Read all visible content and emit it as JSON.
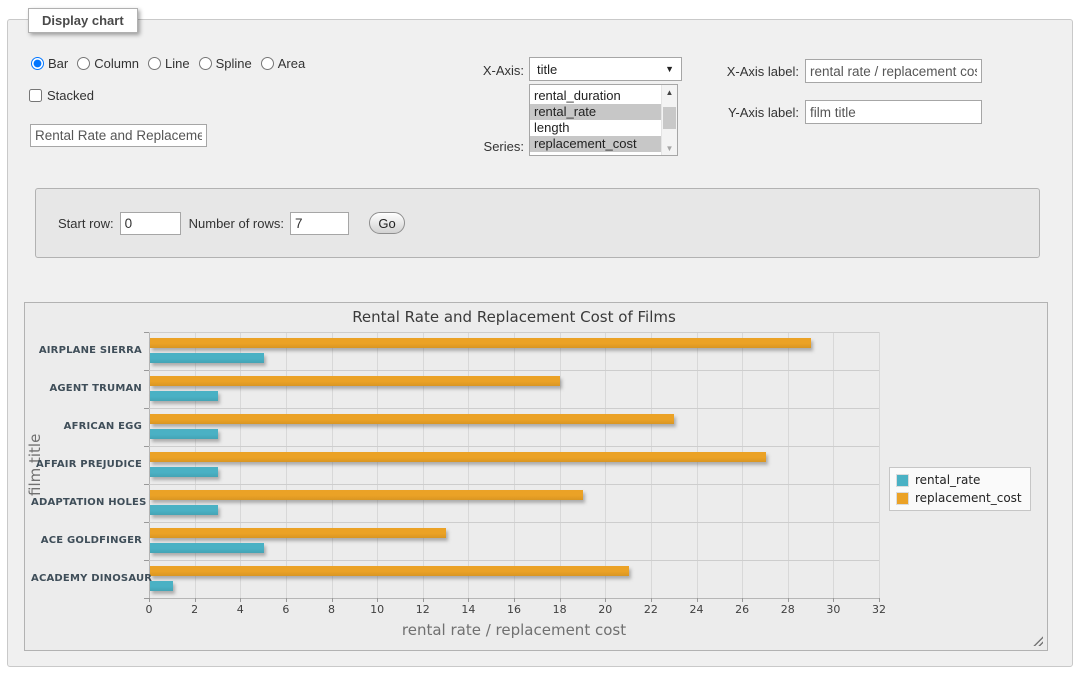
{
  "header": {
    "tab_label": "Display chart"
  },
  "controls": {
    "chart_types": [
      {
        "label": "Bar",
        "selected": true
      },
      {
        "label": "Column",
        "selected": false
      },
      {
        "label": "Line",
        "selected": false
      },
      {
        "label": "Spline",
        "selected": false
      },
      {
        "label": "Area",
        "selected": false
      }
    ],
    "stacked": {
      "label": "Stacked",
      "checked": false
    },
    "chart_title_input": {
      "value": "Rental Rate and Replacement Cost of Films"
    },
    "x_axis": {
      "label": "X-Axis:",
      "selected_value": "title"
    },
    "series_picker": {
      "label": "Series:",
      "options": [
        {
          "label": "rental_duration",
          "selected": false
        },
        {
          "label": "rental_rate",
          "selected": true
        },
        {
          "label": "length",
          "selected": false
        },
        {
          "label": "replacement_cost",
          "selected": true
        }
      ]
    },
    "x_axis_label": {
      "label": "X-Axis label:",
      "value": "rental rate / replacement cost"
    },
    "y_axis_label": {
      "label": "Y-Axis label:",
      "value": "film title"
    }
  },
  "row_controls": {
    "start_row_label": "Start row:",
    "start_row_value": "0",
    "num_rows_label": "Number of rows:",
    "num_rows_value": "7",
    "go_label": "Go"
  },
  "chart_data": {
    "type": "bar",
    "title": "Rental Rate and Replacement Cost of Films",
    "xlabel": "rental rate / replacement cost",
    "ylabel": "film title",
    "categories": [
      "AIRPLANE SIERRA",
      "AGENT TRUMAN",
      "AFRICAN EGG",
      "AFFAIR PREJUDICE",
      "ADAPTATION HOLES",
      "ACE GOLDFINGER",
      "ACADEMY DINOSAUR"
    ],
    "series": [
      {
        "name": "rental_rate",
        "color": "#4ab1c4",
        "values": [
          4.99,
          2.99,
          2.99,
          2.99,
          2.99,
          4.99,
          0.99
        ]
      },
      {
        "name": "replacement_cost",
        "color": "#eba226",
        "values": [
          28.99,
          17.99,
          22.99,
          26.99,
          18.99,
          12.99,
          20.99
        ]
      }
    ],
    "xlim": [
      0,
      32
    ],
    "xtick_step": 2,
    "grid": true,
    "legend_position": "right",
    "bar_order_in_group_top_to_bottom": [
      "replacement_cost",
      "rental_rate"
    ]
  }
}
